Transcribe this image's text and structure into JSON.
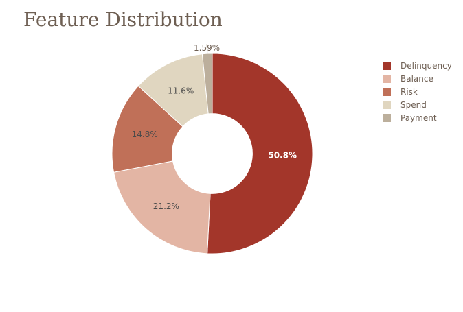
{
  "chart_data": {
    "type": "pie",
    "title": "Feature Distribution",
    "hole": 0.4,
    "legend_position": "right",
    "slices": [
      {
        "label": "Delinquency",
        "value": 50.8,
        "text": "50.8%",
        "color": "#a3362a",
        "text_color": "#ffffff"
      },
      {
        "label": "Balance",
        "value": 21.2,
        "text": "21.2%",
        "color": "#e3b5a4",
        "text_color": "#4a4a4a"
      },
      {
        "label": "Risk",
        "value": 14.8,
        "text": "14.8%",
        "color": "#c07058",
        "text_color": "#4a4a4a"
      },
      {
        "label": "Spend",
        "value": 11.6,
        "text": "11.6%",
        "color": "#e0d6c0",
        "text_color": "#4a4a4a"
      },
      {
        "label": "Payment",
        "value": 1.59,
        "text": "1.59%",
        "color": "#bcaf9c",
        "text_color": "#6e5f53"
      }
    ]
  }
}
